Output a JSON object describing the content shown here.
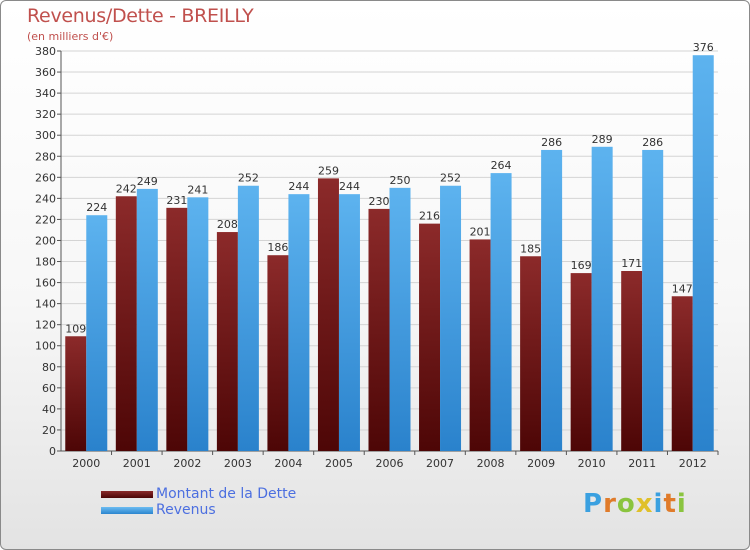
{
  "header": {
    "title": "Revenus/Dette - BREILLY",
    "subtitle": "(en milliers d'€)"
  },
  "chart_data": {
    "type": "bar",
    "title": "Revenus/Dette - BREILLY",
    "subtitle": "(en milliers d'€)",
    "categories": [
      "2000",
      "2001",
      "2002",
      "2003",
      "2004",
      "2005",
      "2006",
      "2007",
      "2008",
      "2009",
      "2010",
      "2011",
      "2012"
    ],
    "series": [
      {
        "name": "Montant de la Dette",
        "color": "#7a1b1b",
        "values": [
          109,
          242,
          231,
          208,
          186,
          259,
          230,
          216,
          201,
          185,
          169,
          171,
          147
        ]
      },
      {
        "name": "Revenus",
        "color": "#3f9be0",
        "values": [
          224,
          249,
          241,
          252,
          244,
          244,
          250,
          252,
          264,
          286,
          289,
          286,
          376
        ]
      }
    ],
    "ylim": [
      0,
      380
    ],
    "ytick_step": 20,
    "grid": true,
    "legend_position": "bottom-left"
  },
  "legend": {
    "items": [
      {
        "label": "Montant de la Dette",
        "color": "#6b0f0f"
      },
      {
        "label": "Revenus",
        "color": "#4aa3e6"
      }
    ]
  },
  "logo": {
    "letters": [
      "P",
      "r",
      "o",
      "x",
      "i",
      "t",
      "i"
    ],
    "colors": [
      "#3aa0e0",
      "#e07b2a",
      "#8ac43f",
      "#e0c02a",
      "#3aa0e0",
      "#e07b2a",
      "#8ac43f"
    ]
  }
}
